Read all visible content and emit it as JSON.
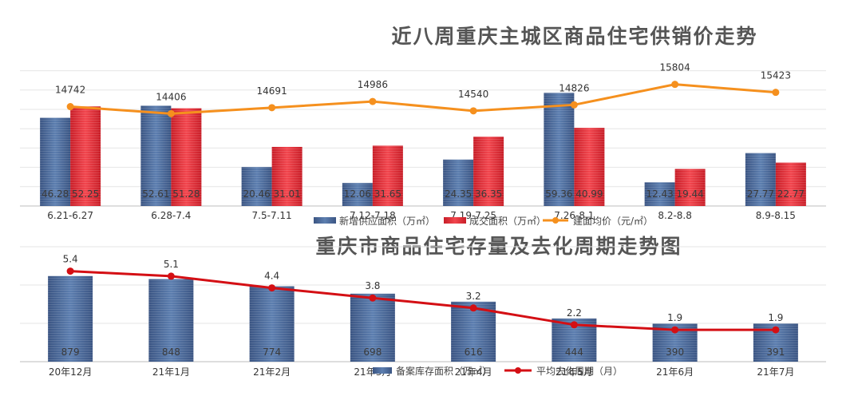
{
  "chart_data": [
    {
      "type": "bar",
      "title": "近八周重庆主城区商品住宅供销价走势",
      "categories": [
        "6.21-6.27",
        "6.28-7.4",
        "7.5-7.11",
        "7.12-7.18",
        "7.19-7.25",
        "7.26-8.1",
        "8.2-8.8",
        "8.9-8.15"
      ],
      "series": [
        {
          "name": "新增供应面积（万㎡）",
          "type": "bar",
          "color": "#4a6a99",
          "values": [
            46.28,
            52.61,
            20.46,
            12.06,
            24.35,
            59.36,
            12.43,
            27.77
          ]
        },
        {
          "name": "成交面积（万㎡）",
          "type": "bar",
          "color": "#e8323c",
          "values": [
            52.25,
            51.28,
            31.01,
            31.65,
            36.35,
            40.99,
            19.44,
            22.77
          ]
        },
        {
          "name": "建面均价（元/㎡）",
          "type": "line",
          "color": "#f5901e",
          "values": [
            14742,
            14406,
            14691,
            14986,
            14540,
            14826,
            15804,
            15423
          ]
        }
      ],
      "legend": "bottom",
      "grid": true
    },
    {
      "type": "bar",
      "title": "重庆市商品住宅存量及去化周期走势图",
      "categories": [
        "20年12月",
        "21年1月",
        "21年2月",
        "21年3月",
        "21年4月",
        "21年5月",
        "21年6月",
        "21年7月"
      ],
      "series": [
        {
          "name": "备案库存面积（万㎡）",
          "type": "bar",
          "color": "#4a6a99",
          "values": [
            879,
            848,
            774,
            698,
            616,
            444,
            390,
            391
          ]
        },
        {
          "name": "平均去化周期（月）",
          "type": "line",
          "color": "#d40f14",
          "values": [
            5.4,
            5.1,
            4.4,
            3.8,
            3.2,
            2.2,
            1.9,
            1.9
          ]
        }
      ],
      "legend": "bottom",
      "grid": true
    }
  ]
}
